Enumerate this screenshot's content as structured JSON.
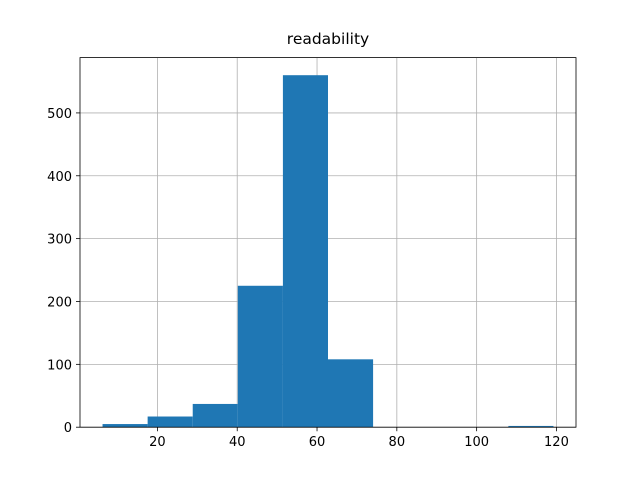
{
  "chart_data": {
    "type": "histogram",
    "title": "readability",
    "bins": [
      6.25,
      17.55,
      28.85,
      40.15,
      51.45,
      62.75,
      74.05,
      85.35,
      96.65,
      107.95,
      119.25
    ],
    "values": [
      5,
      17,
      37,
      225,
      560,
      108,
      0,
      0,
      0,
      2
    ],
    "color": "#1f77b4",
    "xlim": [
      0.6,
      124.9
    ],
    "xticks": [
      20,
      40,
      60,
      80,
      100,
      120
    ],
    "ylim": [
      0,
      588
    ],
    "yticks": [
      0,
      100,
      200,
      300,
      400,
      500
    ],
    "grid": true
  }
}
